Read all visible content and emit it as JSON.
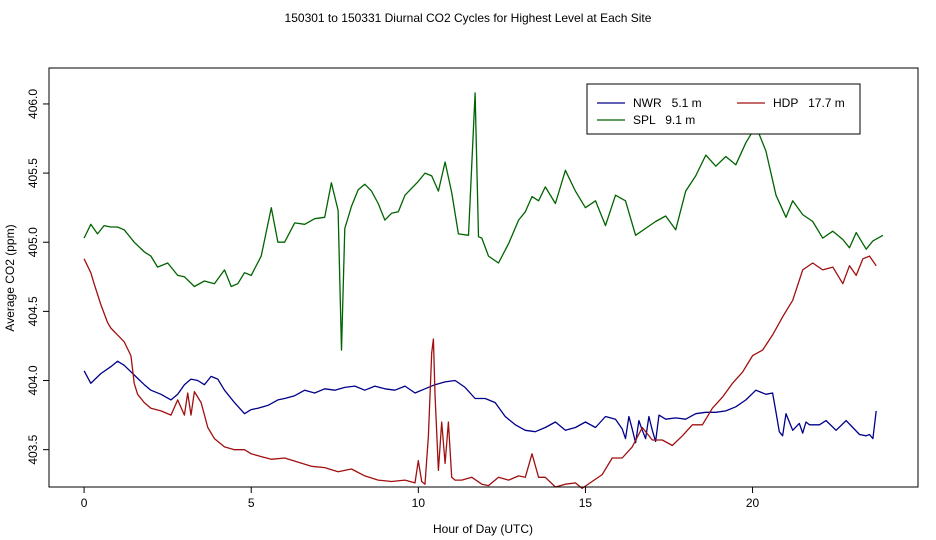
{
  "chart_data": {
    "type": "line",
    "title": "150301  to  150331 Diurnal CO2 Cycles for Highest Level at Each Site",
    "xlabel": "Hour of Day (UTC)",
    "ylabel": "Average CO2 (ppm)",
    "xlim": [
      -1.05,
      24.95
    ],
    "ylim": [
      403.23,
      406.26
    ],
    "xticks": [
      0,
      5,
      10,
      15,
      20
    ],
    "xtick_labels": [
      "0",
      "5",
      "10",
      "15",
      "20"
    ],
    "yticks": [
      403.5,
      404.0,
      404.5,
      405.0,
      405.5,
      406.0
    ],
    "ytick_labels": [
      "403.5",
      "404.0",
      "404.5",
      "405.0",
      "405.5",
      "406.0"
    ],
    "grid": false,
    "legend_position": "top-right",
    "legend": [
      {
        "label": "NWR   5.1 m",
        "color": "#00008b"
      },
      {
        "label": "HDP   17.7 m",
        "color": "#a01010"
      },
      {
        "label": "SPL   9.1 m",
        "color": "#006400"
      }
    ],
    "series": [
      {
        "name": "NWR   5.1 m",
        "color": "#00008b",
        "x": [
          0.0,
          0.2,
          0.5,
          0.8,
          1.0,
          1.2,
          1.5,
          1.8,
          2.0,
          2.3,
          2.6,
          2.8,
          3.0,
          3.2,
          3.4,
          3.6,
          3.8,
          4.0,
          4.2,
          4.5,
          4.8,
          5.0,
          5.2,
          5.5,
          5.8,
          6.0,
          6.3,
          6.6,
          6.9,
          7.2,
          7.5,
          7.8,
          8.1,
          8.4,
          8.7,
          9.0,
          9.3,
          9.6,
          9.9,
          10.2,
          10.5,
          10.8,
          11.1,
          11.4,
          11.7,
          12.0,
          12.3,
          12.6,
          12.9,
          13.2,
          13.5,
          13.8,
          14.1,
          14.4,
          14.7,
          15.0,
          15.3,
          15.6,
          15.9,
          16.1,
          16.2,
          16.3,
          16.4,
          16.5,
          16.6,
          16.7,
          16.8,
          16.9,
          17.0,
          17.1,
          17.2,
          17.4,
          17.7,
          18.0,
          18.3,
          18.6,
          18.9,
          19.2,
          19.5,
          19.8,
          20.1,
          20.4,
          20.6,
          20.7,
          20.8,
          20.9,
          21.0,
          21.2,
          21.4,
          21.5,
          21.6,
          21.7,
          22.0,
          22.2,
          22.5,
          22.8,
          23.0,
          23.2,
          23.4,
          23.5,
          23.6,
          23.7
        ],
        "y": [
          404.07,
          403.98,
          404.05,
          404.1,
          404.14,
          404.11,
          404.04,
          403.97,
          403.93,
          403.9,
          403.86,
          403.9,
          403.97,
          404.01,
          404.0,
          403.97,
          404.03,
          404.01,
          403.93,
          403.84,
          403.76,
          403.79,
          403.8,
          403.82,
          403.86,
          403.87,
          403.89,
          403.93,
          403.91,
          403.94,
          403.93,
          403.95,
          403.96,
          403.93,
          403.96,
          403.94,
          403.93,
          403.96,
          403.91,
          403.94,
          403.97,
          403.99,
          404.0,
          403.95,
          403.87,
          403.87,
          403.84,
          403.74,
          403.68,
          403.64,
          403.63,
          403.66,
          403.7,
          403.64,
          403.66,
          403.7,
          403.66,
          403.74,
          403.72,
          403.65,
          403.58,
          403.74,
          403.65,
          403.55,
          403.71,
          403.64,
          403.58,
          403.74,
          403.64,
          403.56,
          403.75,
          403.72,
          403.73,
          403.72,
          403.76,
          403.77,
          403.77,
          403.78,
          403.81,
          403.86,
          403.93,
          403.9,
          403.91,
          403.77,
          403.63,
          403.6,
          403.76,
          403.64,
          403.69,
          403.62,
          403.7,
          403.68,
          403.68,
          403.71,
          403.64,
          403.71,
          403.66,
          403.61,
          403.6,
          403.61,
          403.58,
          403.78
        ]
      },
      {
        "name": "HDP   17.7 m",
        "color": "#a01010",
        "x": [
          0.0,
          0.2,
          0.3,
          0.5,
          0.7,
          0.8,
          1.0,
          1.2,
          1.4,
          1.45,
          1.5,
          1.6,
          1.8,
          2.0,
          2.3,
          2.6,
          2.8,
          3.0,
          3.1,
          3.2,
          3.3,
          3.5,
          3.7,
          3.9,
          4.2,
          4.5,
          4.8,
          5.0,
          5.3,
          5.6,
          6.0,
          6.4,
          6.8,
          7.2,
          7.6,
          8.0,
          8.4,
          8.8,
          9.2,
          9.6,
          9.9,
          10.0,
          10.1,
          10.2,
          10.3,
          10.4,
          10.45,
          10.5,
          10.6,
          10.7,
          10.8,
          10.9,
          11.0,
          11.1,
          11.3,
          11.6,
          11.9,
          12.1,
          12.4,
          12.7,
          13.0,
          13.2,
          13.4,
          13.6,
          13.8,
          14.1,
          14.4,
          14.7,
          14.9,
          15.2,
          15.5,
          15.8,
          16.1,
          16.4,
          16.7,
          17.0,
          17.3,
          17.6,
          17.9,
          18.2,
          18.5,
          18.8,
          19.1,
          19.4,
          19.7,
          20.0,
          20.3,
          20.6,
          20.9,
          21.2,
          21.5,
          21.8,
          22.1,
          22.4,
          22.7,
          22.9,
          23.1,
          23.3,
          23.5,
          23.7
        ],
        "y": [
          404.88,
          404.78,
          404.7,
          404.55,
          404.42,
          404.38,
          404.33,
          404.28,
          404.18,
          404.08,
          403.98,
          403.9,
          403.84,
          403.8,
          403.78,
          403.75,
          403.86,
          403.75,
          403.91,
          403.75,
          403.92,
          403.84,
          403.66,
          403.58,
          403.52,
          403.5,
          403.5,
          403.47,
          403.45,
          403.43,
          403.44,
          403.41,
          403.38,
          403.37,
          403.34,
          403.36,
          403.31,
          403.28,
          403.27,
          403.28,
          403.26,
          403.42,
          403.27,
          403.25,
          403.6,
          404.2,
          404.3,
          403.9,
          403.35,
          403.7,
          403.4,
          403.7,
          403.3,
          403.28,
          403.28,
          403.3,
          403.25,
          403.24,
          403.3,
          403.28,
          403.31,
          403.3,
          403.47,
          403.3,
          403.3,
          403.23,
          403.25,
          403.26,
          403.22,
          403.27,
          403.32,
          403.44,
          403.44,
          403.52,
          403.66,
          403.57,
          403.57,
          403.53,
          403.6,
          403.68,
          403.68,
          403.8,
          403.88,
          403.98,
          404.06,
          404.18,
          404.22,
          404.33,
          404.46,
          404.58,
          404.8,
          404.85,
          404.8,
          404.82,
          404.7,
          404.83,
          404.76,
          404.88,
          404.9,
          404.83
        ]
      },
      {
        "name": "SPL   9.1 m",
        "color": "#006400",
        "x": [
          0.0,
          0.2,
          0.4,
          0.6,
          0.8,
          1.0,
          1.2,
          1.5,
          1.8,
          2.0,
          2.2,
          2.5,
          2.8,
          3.0,
          3.3,
          3.6,
          3.9,
          4.2,
          4.4,
          4.6,
          4.8,
          5.0,
          5.3,
          5.6,
          5.8,
          6.0,
          6.3,
          6.6,
          6.9,
          7.2,
          7.4,
          7.6,
          7.7,
          7.8,
          8.0,
          8.2,
          8.4,
          8.6,
          8.8,
          9.0,
          9.2,
          9.4,
          9.6,
          9.8,
          10.0,
          10.2,
          10.4,
          10.6,
          10.8,
          11.0,
          11.2,
          11.5,
          11.7,
          11.8,
          11.9,
          12.1,
          12.4,
          12.7,
          13.0,
          13.2,
          13.4,
          13.6,
          13.8,
          14.1,
          14.4,
          14.7,
          15.0,
          15.3,
          15.6,
          15.9,
          16.2,
          16.5,
          16.8,
          17.1,
          17.4,
          17.7,
          18.0,
          18.3,
          18.6,
          18.9,
          19.2,
          19.5,
          19.8,
          20.1,
          20.4,
          20.7,
          21.0,
          21.2,
          21.5,
          21.8,
          22.1,
          22.4,
          22.7,
          22.9,
          23.1,
          23.4,
          23.6,
          23.9
        ],
        "y": [
          405.03,
          405.13,
          405.06,
          405.12,
          405.11,
          405.11,
          405.09,
          405.0,
          404.93,
          404.9,
          404.82,
          404.85,
          404.76,
          404.75,
          404.68,
          404.72,
          404.7,
          404.8,
          404.68,
          404.7,
          404.78,
          404.76,
          404.9,
          405.25,
          405.0,
          405.0,
          405.14,
          405.13,
          405.17,
          405.18,
          405.43,
          405.23,
          404.22,
          405.1,
          405.26,
          405.38,
          405.42,
          405.37,
          405.28,
          405.16,
          405.21,
          405.22,
          405.34,
          405.39,
          405.44,
          405.5,
          405.48,
          405.37,
          405.58,
          405.36,
          405.06,
          405.05,
          406.08,
          405.04,
          405.03,
          404.9,
          404.85,
          404.99,
          405.16,
          405.22,
          405.33,
          405.3,
          405.4,
          405.28,
          405.52,
          405.37,
          405.25,
          405.3,
          405.12,
          405.34,
          405.3,
          405.05,
          405.1,
          405.15,
          405.19,
          405.09,
          405.37,
          405.48,
          405.63,
          405.55,
          405.62,
          405.56,
          405.72,
          405.84,
          405.66,
          405.34,
          405.18,
          405.3,
          405.2,
          405.15,
          405.03,
          405.08,
          405.02,
          404.96,
          405.07,
          404.95,
          405.01,
          405.05
        ]
      }
    ]
  }
}
